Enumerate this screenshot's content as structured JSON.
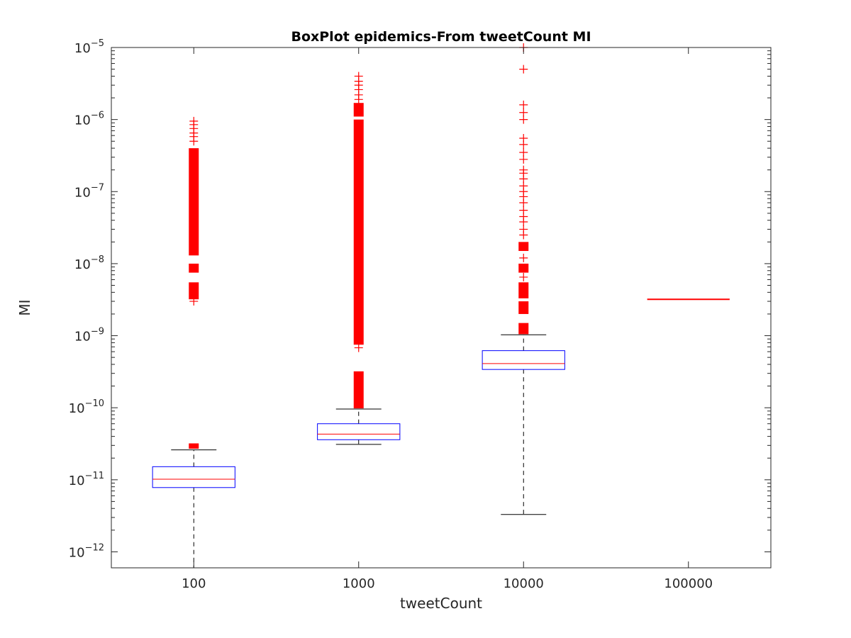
{
  "chart_data": {
    "type": "box",
    "title": "BoxPlot epidemics-From tweetCount MI",
    "xlabel": "tweetCount",
    "ylabel": "MI",
    "y_scale": "log",
    "ylim": [
      6e-13,
      1e-05
    ],
    "y_ticks": [
      {
        "value": 1e-12,
        "base": "10",
        "exp": "−12"
      },
      {
        "value": 1e-11,
        "base": "10",
        "exp": "−11"
      },
      {
        "value": 1e-10,
        "base": "10",
        "exp": "−10"
      },
      {
        "value": 1e-09,
        "base": "10",
        "exp": "−9"
      },
      {
        "value": 1e-08,
        "base": "10",
        "exp": "−8"
      },
      {
        "value": 1e-07,
        "base": "10",
        "exp": "−7"
      },
      {
        "value": 1e-06,
        "base": "10",
        "exp": "−6"
      },
      {
        "value": 1e-05,
        "base": "10",
        "exp": "−5"
      }
    ],
    "categories": [
      "100",
      "1000",
      "10000",
      "100000"
    ],
    "boxes": [
      {
        "category": "100",
        "whisker_low": 6e-13,
        "q1": 7.8e-12,
        "median": 1.02e-11,
        "q3": 1.52e-11,
        "whisker_high": 2.6e-11,
        "outlier_bands": [
          [
            2.7e-11,
            3.2e-11
          ],
          [
            3.2e-09,
            5.5e-09
          ],
          [
            7.5e-09,
            1e-08
          ],
          [
            1.3e-08,
            4e-07
          ]
        ],
        "outliers": [
          3e-09,
          5e-07,
          5.8e-07,
          6.5e-07,
          7.5e-07,
          8.5e-07,
          9.5e-07
        ]
      },
      {
        "category": "1000",
        "whisker_low": 3.1e-11,
        "q1": 3.6e-11,
        "median": 4.3e-11,
        "q3": 6e-11,
        "whisker_high": 9.6e-11,
        "outlier_bands": [
          [
            9.8e-11,
            3.2e-10
          ],
          [
            7.5e-10,
            1e-06
          ],
          [
            1.1e-06,
            1.7e-06
          ]
        ],
        "outliers": [
          6.8e-10,
          1.9e-06,
          2.2e-06,
          2.6e-06,
          3e-06,
          3.4e-06,
          4e-06
        ]
      },
      {
        "category": "10000",
        "whisker_low": 3.3e-12,
        "q1": 3.4e-10,
        "median": 4.1e-10,
        "q3": 6.2e-10,
        "whisker_high": 1.03e-09,
        "outlier_bands": [
          [
            1.05e-09,
            1.5e-09
          ],
          [
            2e-09,
            3e-09
          ],
          [
            3.3e-09,
            5.5e-09
          ],
          [
            7.5e-09,
            1e-08
          ],
          [
            1.5e-08,
            2e-08
          ]
        ],
        "outliers": [
          6.5e-09,
          1.2e-08,
          2.5e-08,
          3e-08,
          3.8e-08,
          4.5e-08,
          5.5e-08,
          7e-08,
          8.5e-08,
          1e-07,
          1.2e-07,
          1.5e-07,
          1.8e-07,
          2e-07,
          2.8e-07,
          3.5e-07,
          4.5e-07,
          5.5e-07,
          1e-06,
          1.25e-06,
          1.6e-06,
          5e-06,
          1e-05
        ]
      },
      {
        "category": "100000",
        "single_value": 3.2e-09
      }
    ],
    "colors": {
      "box": "#0000ff",
      "median": "#ff0000",
      "outlier": "#ff0000",
      "whisker": "#000000"
    },
    "grid": false
  }
}
